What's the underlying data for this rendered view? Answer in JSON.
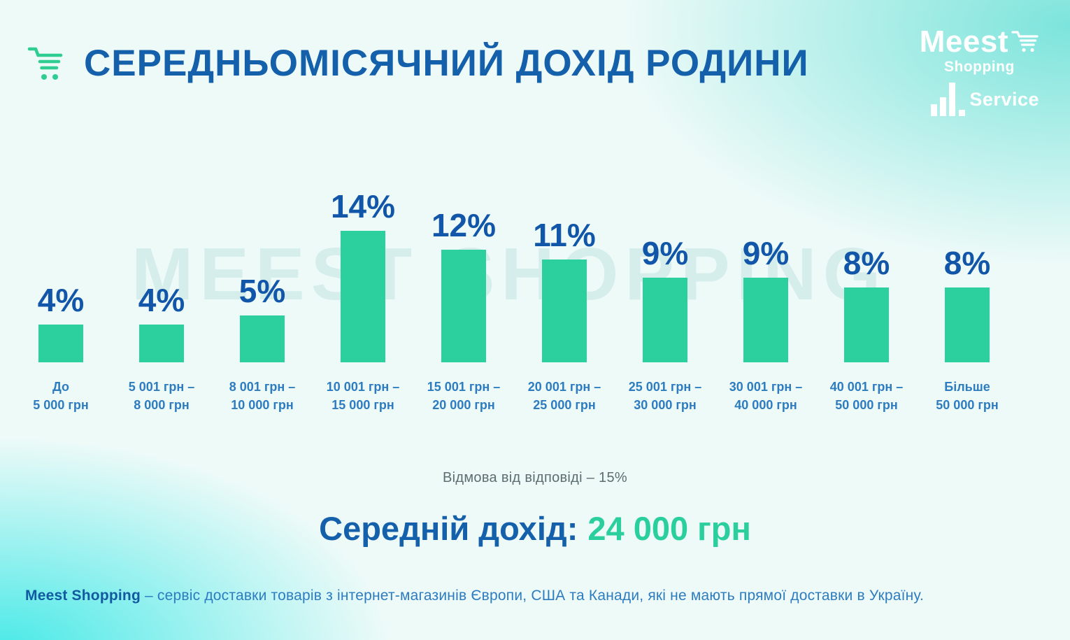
{
  "header": {
    "title": "СЕРЕДНЬОМІСЯЧНИЙ ДОХІД РОДИНИ"
  },
  "watermark": "MEEST SHOPPING",
  "logos": {
    "meest": "Meest",
    "meest_sub": "Shopping",
    "service": "Service"
  },
  "chart_data": {
    "type": "bar",
    "title": "СЕРЕДНЬОМІСЯЧНИЙ ДОХІД РОДИНИ",
    "unit": "%",
    "categories": [
      {
        "line1": "До",
        "line2": "5 000 грн"
      },
      {
        "line1": "5 001 грн –",
        "line2": "8 000 грн"
      },
      {
        "line1": "8 001 грн –",
        "line2": "10 000 грн"
      },
      {
        "line1": "10 001 грн –",
        "line2": "15 000 грн"
      },
      {
        "line1": "15 001 грн –",
        "line2": "20 000 грн"
      },
      {
        "line1": "20 001 грн –",
        "line2": "25 000 грн"
      },
      {
        "line1": "25 001 грн –",
        "line2": "30 000 грн"
      },
      {
        "line1": "30 001 грн –",
        "line2": "40 000 грн"
      },
      {
        "line1": "40 001 грн –",
        "line2": "50 000 грн"
      },
      {
        "line1": "Більше",
        "line2": "50 000 грн"
      }
    ],
    "values": [
      4,
      4,
      5,
      14,
      12,
      11,
      9,
      9,
      8,
      8
    ],
    "value_labels": [
      "4%",
      "4%",
      "5%",
      "14%",
      "12%",
      "11%",
      "9%",
      "9%",
      "8%",
      "8%"
    ],
    "ylim": [
      0,
      15
    ],
    "grid": false,
    "legend": false,
    "xlabel": "",
    "ylabel": ""
  },
  "notes": {
    "refusal": "Відмова від відповіді  – 15%",
    "average_label": "Середній дохід:",
    "average_value": "24 000 грн"
  },
  "footer": {
    "brand": "Meest Shopping",
    "text": " – сервіс доставки товарів з інтернет-магазинів Європи, США та Канади, які не мають прямої доставки в Україну."
  },
  "colors": {
    "bar": "#2bd09e",
    "title_blue": "#1560ab",
    "value_blue": "#1156a8",
    "category_blue": "#2e7cc0",
    "note_gray": "#5d6d71",
    "average_green": "#2bcf9e",
    "cart_green": "#2fcd92",
    "footer_blue": "#2d7cbf",
    "footer_brand_blue": "#12599f",
    "watermark": "#d5edeb",
    "logo_white": "#ffffff"
  }
}
